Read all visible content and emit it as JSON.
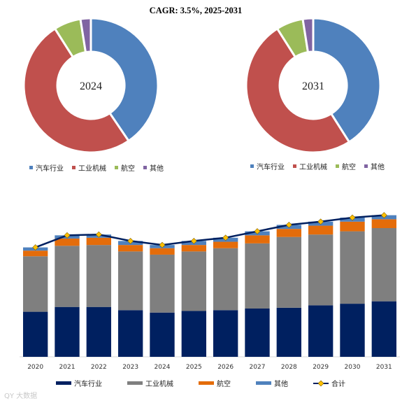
{
  "chart_data": [
    {
      "type": "pie",
      "donut": true,
      "center_label": "2024",
      "title": "CAGR: 3.5%, 2025-2031",
      "slices": [
        {
          "name": "汽车行业",
          "value": 40.5,
          "color": "#4f81bd"
        },
        {
          "name": "工业机械",
          "value": 50.5,
          "color": "#c0504d"
        },
        {
          "name": "航空",
          "value": 6.5,
          "color": "#9bbb59"
        },
        {
          "name": "其他",
          "value": 2.5,
          "color": "#8064a2"
        }
      ],
      "legend": [
        "汽车行业",
        "工业机械",
        "航空",
        "其他"
      ],
      "legend_position": "bottom"
    },
    {
      "type": "pie",
      "donut": true,
      "center_label": "2031",
      "slices": [
        {
          "name": "汽车行业",
          "value": 41.0,
          "color": "#4f81bd"
        },
        {
          "name": "工业机械",
          "value": 50.0,
          "color": "#c0504d"
        },
        {
          "name": "航空",
          "value": 6.5,
          "color": "#9bbb59"
        },
        {
          "name": "其他",
          "value": 2.5,
          "color": "#8064a2"
        }
      ],
      "legend": [
        "汽车行业",
        "工业机械",
        "航空",
        "其他"
      ],
      "legend_position": "bottom"
    },
    {
      "type": "bar",
      "stacked": true,
      "categories": [
        "2020",
        "2021",
        "2022",
        "2023",
        "2024",
        "2025",
        "2026",
        "2027",
        "2028",
        "2029",
        "2030",
        "2031"
      ],
      "series": [
        {
          "name": "汽车行业",
          "color": "#002060",
          "values": [
            56,
            62,
            62,
            58,
            55,
            57,
            58,
            60,
            61,
            64,
            66,
            69
          ]
        },
        {
          "name": "工业机械",
          "color": "#7f7f7f",
          "values": [
            69,
            76,
            77,
            73,
            72,
            74,
            77,
            81,
            88,
            88,
            90,
            91
          ]
        },
        {
          "name": "航空",
          "color": "#e46c0a",
          "values": [
            7,
            9,
            9,
            8,
            8,
            8,
            8,
            10,
            10,
            11,
            12,
            11
          ]
        },
        {
          "name": "其他",
          "color": "#4f81bd",
          "values": [
            4,
            4,
            4,
            5,
            4,
            5,
            5,
            5,
            5,
            5,
            5,
            5
          ]
        }
      ],
      "total": {
        "name": "合计",
        "line_color": "#002060",
        "marker_color": "#ffc000",
        "values": [
          136,
          151,
          152,
          144,
          139,
          144,
          148,
          156,
          164,
          168,
          173,
          176
        ]
      },
      "ylim": [
        0,
        200
      ],
      "grid": false,
      "legend": [
        "汽车行业",
        "工业机械",
        "航空",
        "其他",
        "合计"
      ],
      "legend_position": "bottom"
    }
  ],
  "watermark": "QY 大数据"
}
